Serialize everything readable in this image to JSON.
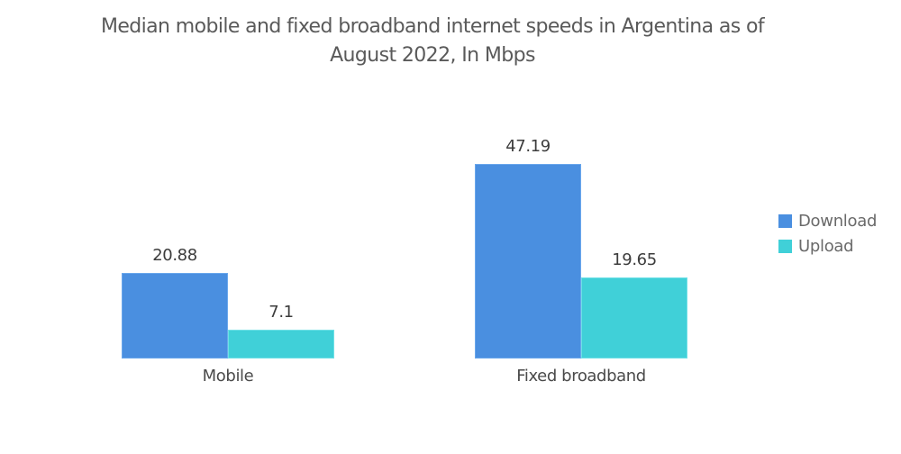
{
  "title": {
    "line1": "Median mobile and fixed broadband internet speeds in Argentina as of",
    "line2": "August 2022, In Mbps"
  },
  "legend": [
    {
      "label": "Download",
      "color": "#4a8fe0"
    },
    {
      "label": "Upload",
      "color": "#40d0d8"
    }
  ],
  "groups": [
    {
      "category": "Mobile",
      "download": "20.88",
      "upload": "7.1"
    },
    {
      "category": "Fixed broadband",
      "download": "47.19",
      "upload": "19.65"
    }
  ],
  "chart_data": {
    "type": "bar",
    "title": "Median mobile and fixed broadband internet speeds in Argentina as of August 2022, In Mbps",
    "categories": [
      "Mobile",
      "Fixed broadband"
    ],
    "series": [
      {
        "name": "Download",
        "values": [
          20.88,
          47.19
        ],
        "color": "#4a8fe0"
      },
      {
        "name": "Upload",
        "values": [
          7.1,
          19.65
        ],
        "color": "#40d0d8"
      }
    ],
    "xlabel": "",
    "ylabel": "",
    "ylim": [
      0,
      50
    ],
    "grid": false,
    "legend_position": "right",
    "data_labels": true,
    "y_axis_visible": false
  }
}
